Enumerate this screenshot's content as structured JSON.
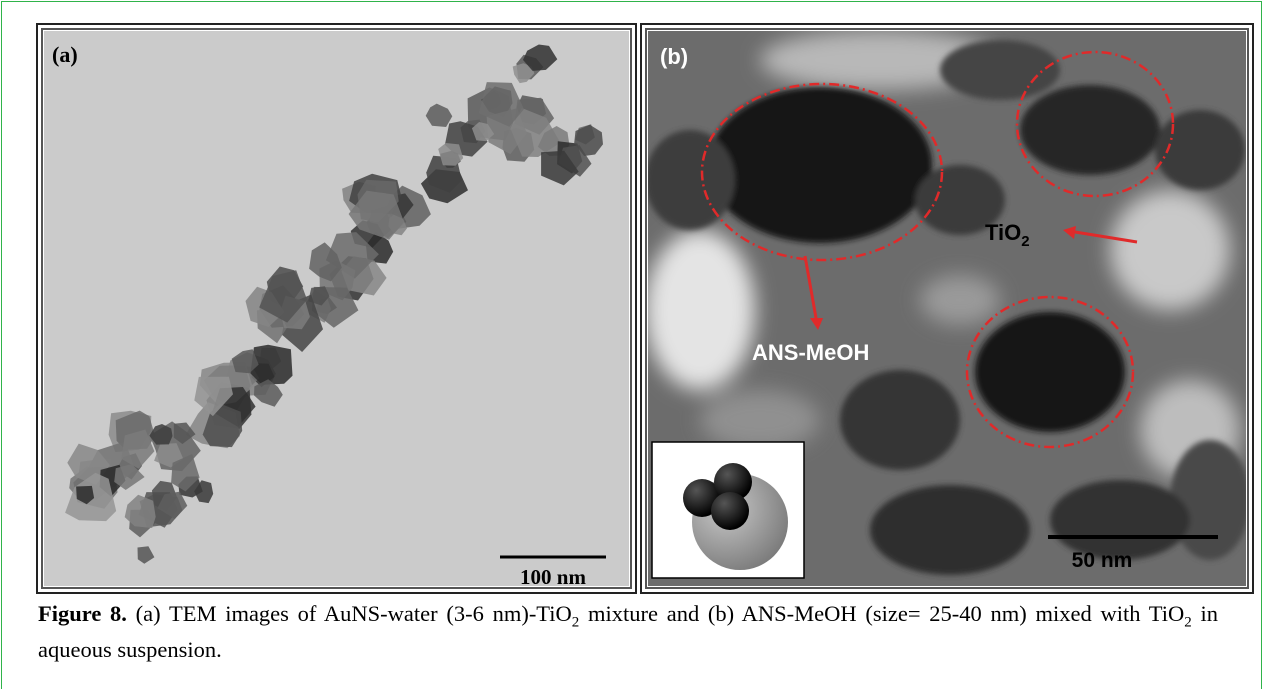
{
  "panel_a": {
    "label": "(a)",
    "scale_bar": "100 nm"
  },
  "panel_b": {
    "label": "(b)",
    "annotations": {
      "tio2": {
        "text": "TiO",
        "subscript": "2"
      },
      "ans": "ANS-MeOH"
    },
    "scale_bar": "50 nm"
  },
  "caption": {
    "label": "Figure 8.",
    "segments": [
      "(a) TEM images of AuNS-water (3-6 nm)-TiO",
      "2",
      "mixture and (b) ANS-MeOH (size= 25-40 nm) mixed with TiO",
      "2",
      "in aqueous suspension."
    ]
  }
}
